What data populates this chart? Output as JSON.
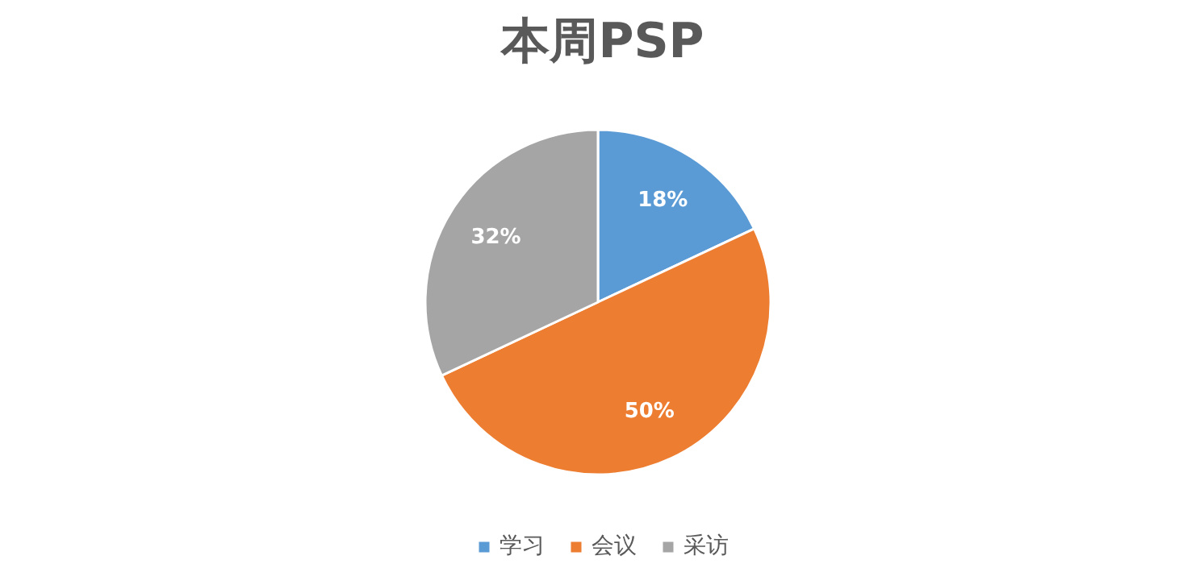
{
  "chart_data": {
    "type": "pie",
    "title": "本周PSP",
    "categories": [
      "学习",
      "会议",
      "采访"
    ],
    "values": [
      18,
      50,
      32
    ],
    "colors": [
      "#5b9bd5",
      "#ed7d31",
      "#a5a5a5"
    ],
    "value_labels": [
      "18%",
      "50%",
      "32%"
    ],
    "legend": "bottom"
  }
}
